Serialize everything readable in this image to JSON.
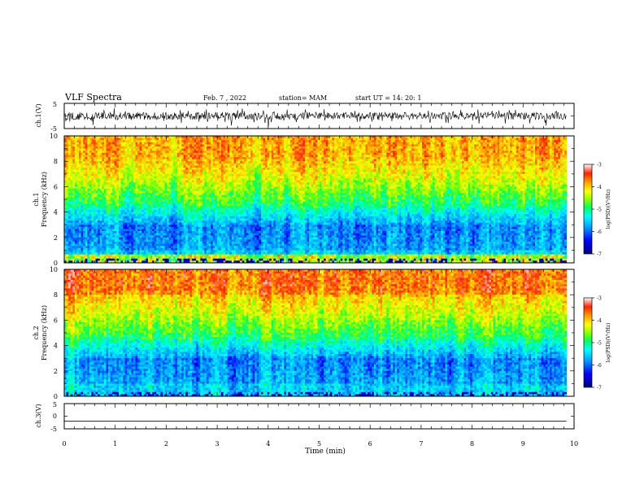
{
  "header": {
    "title": "VLF Spectra",
    "date": "Feb. 7 , 2022",
    "station": "station= MAM",
    "start_ut": "start  UT =   14: 20: 1"
  },
  "chart_data": [
    {
      "type": "line",
      "panel": "ch1-waveform",
      "ylabel": "ch.1(V)",
      "x_range": [
        0,
        10
      ],
      "y_range": [
        -5,
        5
      ],
      "y_ticks": [
        "5",
        "-5"
      ],
      "signal": "dense noise waveform, amplitude about 1-2 V around 0"
    },
    {
      "type": "heatmap",
      "panel": "ch1-spectrogram",
      "ylabel_top": "ch.1",
      "ylabel": "Frequency  (kHz)",
      "x_range": [
        0,
        10
      ],
      "y_range": [
        0,
        10
      ],
      "y_ticks": [
        "0",
        "2",
        "4",
        "6",
        "8",
        "10"
      ],
      "data_extent_min": 9.85,
      "colorbar": {
        "label": "log(PSD)(V²/Hz)",
        "range": [
          -7,
          -3
        ],
        "ticks": [
          "-3",
          "-4",
          "-5",
          "-6",
          "-7"
        ]
      }
    },
    {
      "type": "heatmap",
      "panel": "ch2-spectrogram",
      "ylabel_top": "ch.2",
      "ylabel": "Frequency  (kHz)",
      "x_range": [
        0,
        10
      ],
      "y_range": [
        0,
        10
      ],
      "y_ticks": [
        "0",
        "2",
        "4",
        "6",
        "8",
        "10"
      ],
      "data_extent_min": 9.85,
      "colorbar": {
        "label": "log(PSD)(V²/Hz)",
        "range": [
          -7,
          -3
        ],
        "ticks": [
          "-3",
          "-4",
          "-5",
          "-6",
          "-7"
        ]
      }
    },
    {
      "type": "line",
      "panel": "ch3-waveform",
      "ylabel": "ch.3(V)",
      "x_range": [
        0,
        10
      ],
      "y_range": [
        -5,
        5
      ],
      "y_ticks": [
        "5",
        "0",
        "-5"
      ],
      "signal": "flat line at about -2 V"
    }
  ],
  "x_axis": {
    "label": "Time  (min)",
    "ticks": [
      "0",
      "1",
      "2",
      "3",
      "4",
      "5",
      "6",
      "7",
      "8",
      "9",
      "10"
    ]
  },
  "colors": {
    "ink": "#000000",
    "colormap": [
      "#000080",
      "#0000ff",
      "#00a0ff",
      "#00ffff",
      "#00ff60",
      "#80ff00",
      "#ffff00",
      "#ffa000",
      "#ff2000",
      "#ffffff"
    ]
  }
}
